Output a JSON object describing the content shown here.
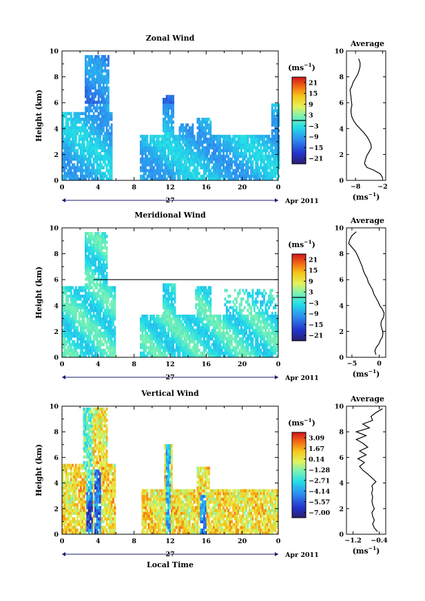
{
  "chart_data": [
    {
      "type": "heatmap",
      "id": "zonal",
      "title": "Zonal Wind",
      "ylabel": "Height (km)",
      "xlabel": "",
      "x_ticks": [
        "0",
        "4",
        "8",
        "12",
        "16",
        "20",
        "0"
      ],
      "xlim": [
        0,
        24
      ],
      "y_ticks": [
        "0",
        "2",
        "4",
        "6",
        "8",
        "10"
      ],
      "ylim": [
        0,
        10
      ],
      "date_label": "27",
      "month_label": "Apr 2011",
      "colorbar": {
        "unit": "(ms",
        "unit_exp": "−1",
        "unit_close": ")",
        "ticks": [
          "21",
          "15",
          "9",
          "3",
          "−3",
          "−9",
          "−15",
          "−21"
        ],
        "range": [
          -24,
          24
        ],
        "zero_line": 0
      },
      "average": {
        "title": "Average",
        "xlabel_unit": "(ms",
        "xlabel_exp": "−1",
        "xlabel_close": ")",
        "x_ticks": [
          {
            "label": "−8",
            "value": -8
          },
          {
            "label": "−2",
            "value": -2
          }
        ],
        "xlim": [
          -10,
          -1.3
        ],
        "y_ticks": [
          "0",
          "2",
          "4",
          "6",
          "8",
          "10"
        ],
        "height": [
          0.2,
          0.5,
          0.8,
          1.0,
          1.3,
          1.6,
          1.9,
          2.2,
          2.5,
          2.8,
          3.1,
          3.4,
          3.7,
          4.0,
          4.3,
          4.6,
          4.9,
          5.2,
          5.5,
          5.8,
          6.1,
          6.4,
          6.7,
          7.0,
          7.3,
          7.6,
          7.9,
          8.2,
          8.5,
          8.8,
          9.1,
          9.4
        ],
        "value": [
          -2.0,
          -2.5,
          -4.0,
          -5.5,
          -6.0,
          -5.8,
          -5.5,
          -5.0,
          -4.5,
          -4.6,
          -5.0,
          -5.5,
          -6.2,
          -7.0,
          -7.8,
          -8.4,
          -8.8,
          -9.0,
          -9.0,
          -8.8,
          -8.9,
          -9.0,
          -9.1,
          -9.2,
          -8.8,
          -8.5,
          -8.0,
          -7.5,
          -7.2,
          -7.0,
          -7.0,
          -7.3
        ]
      }
    },
    {
      "type": "heatmap",
      "id": "meridional",
      "title": "Meridional Wind",
      "ylabel": "Height (km)",
      "xlabel": "",
      "x_ticks": [
        "0",
        "4",
        "8",
        "12",
        "16",
        "20",
        "0"
      ],
      "xlim": [
        0,
        24
      ],
      "y_ticks": [
        "0",
        "2",
        "4",
        "6",
        "8",
        "10"
      ],
      "ylim": [
        0,
        10
      ],
      "date_label": "27",
      "month_label": "Apr 2011",
      "colorbar": {
        "unit": "(ms",
        "unit_exp": "−1",
        "unit_close": ")",
        "ticks": [
          "21",
          "15",
          "9",
          "3",
          "−3",
          "−9",
          "−15",
          "−21"
        ],
        "range": [
          -24,
          24
        ],
        "zero_line": 0
      },
      "average": {
        "title": "Average",
        "xlabel_unit": "(ms",
        "xlabel_exp": "−1",
        "xlabel_close": ")",
        "x_ticks": [
          {
            "label": "−5",
            "value": -5
          },
          {
            "label": "0",
            "value": 0
          }
        ],
        "xlim": [
          -6,
          1.2
        ],
        "y_ticks": [
          "0",
          "2",
          "4",
          "6",
          "8",
          "10"
        ],
        "height": [
          0.2,
          0.5,
          0.8,
          1.0,
          1.3,
          1.6,
          1.9,
          2.2,
          2.5,
          2.8,
          3.1,
          3.4,
          3.7,
          4.0,
          4.3,
          4.6,
          4.9,
          5.2,
          5.5,
          5.8,
          6.1,
          6.4,
          6.7,
          7.0,
          7.3,
          7.6,
          7.9,
          8.2,
          8.5,
          8.8,
          9.1,
          9.4,
          9.7
        ],
        "value": [
          -0.6,
          -0.8,
          -0.5,
          -0.1,
          0.2,
          0.6,
          0.7,
          0.5,
          0.3,
          0.4,
          0.8,
          0.9,
          0.6,
          0.1,
          -0.2,
          -0.6,
          -1.0,
          -1.2,
          -1.6,
          -2.0,
          -2.2,
          -2.6,
          -2.9,
          -3.1,
          -3.4,
          -3.7,
          -4.0,
          -4.4,
          -5.0,
          -5.6,
          -5.4,
          -5.0,
          -4.2
        ]
      }
    },
    {
      "type": "heatmap",
      "id": "vertical",
      "title": "Vertical Wind",
      "ylabel": "Height (km)",
      "xlabel": "Local Time",
      "x_ticks": [
        "0",
        "4",
        "8",
        "12",
        "16",
        "20",
        "0"
      ],
      "xlim": [
        0,
        24
      ],
      "y_ticks": [
        "0",
        "2",
        "4",
        "6",
        "8",
        "10"
      ],
      "ylim": [
        0,
        10
      ],
      "date_label": "27",
      "month_label": "Apr 2011",
      "colorbar": {
        "unit": "(ms",
        "unit_exp": "−1",
        "unit_close": ")",
        "ticks": [
          "3.09",
          "1.67",
          "0.14",
          "−1.28",
          "−2.71",
          "−4.14",
          "−5.57",
          "−7.00"
        ],
        "range": [
          -7.7,
          3.8
        ],
        "zero_line": null
      },
      "average": {
        "title": "Average",
        "xlabel_unit": "(ms",
        "xlabel_exp": "−1",
        "xlabel_close": ")",
        "x_ticks": [
          {
            "label": "−1.2",
            "value": -1.2
          },
          {
            "label": "−0.4",
            "value": -0.4
          }
        ],
        "xlim": [
          -1.4,
          -0.2
        ],
        "y_ticks": [
          "0",
          "2",
          "4",
          "6",
          "8",
          "10"
        ],
        "height": [
          0.2,
          0.5,
          0.8,
          1.1,
          1.4,
          1.7,
          2.0,
          2.3,
          2.6,
          2.9,
          3.2,
          3.5,
          3.8,
          4.1,
          4.4,
          4.7,
          5.0,
          5.3,
          5.6,
          5.9,
          6.2,
          6.5,
          6.8,
          7.1,
          7.4,
          7.7,
          8.0,
          8.3,
          8.6,
          8.9,
          9.2,
          9.5,
          9.8
        ],
        "value": [
          -0.45,
          -0.55,
          -0.6,
          -0.55,
          -0.6,
          -0.62,
          -0.55,
          -0.6,
          -0.62,
          -0.6,
          -0.63,
          -0.6,
          -0.62,
          -0.5,
          -0.62,
          -0.75,
          -0.9,
          -1.0,
          -0.85,
          -1.05,
          -0.8,
          -1.0,
          -0.75,
          -0.9,
          -1.1,
          -0.8,
          -1.1,
          -0.7,
          -0.9,
          -0.6,
          -0.65,
          -0.5,
          -0.3
        ]
      }
    }
  ]
}
